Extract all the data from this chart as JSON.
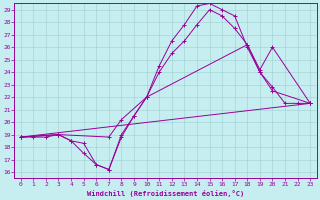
{
  "xlabel": "Windchill (Refroidissement éolien,°C)",
  "background_color": "#c6eef0",
  "line_color": "#990099",
  "grid_color": "#9dcfcf",
  "xlim": [
    -0.5,
    23.5
  ],
  "ylim": [
    15.5,
    29.5
  ],
  "xticks": [
    0,
    1,
    2,
    3,
    4,
    5,
    6,
    7,
    8,
    9,
    10,
    11,
    12,
    13,
    14,
    15,
    16,
    17,
    18,
    19,
    20,
    21,
    22,
    23
  ],
  "yticks": [
    16,
    17,
    18,
    19,
    20,
    21,
    22,
    23,
    24,
    25,
    26,
    27,
    28,
    29
  ],
  "line1_x": [
    0,
    1,
    2,
    3,
    4,
    5,
    6,
    7,
    8,
    9,
    10,
    11,
    12,
    13,
    14,
    15,
    16,
    17,
    18,
    19,
    20,
    21,
    22,
    23
  ],
  "line1_y": [
    18.8,
    18.8,
    18.8,
    19.0,
    18.5,
    18.3,
    16.6,
    16.2,
    18.8,
    20.5,
    22.0,
    24.5,
    26.5,
    27.8,
    29.3,
    29.5,
    29.0,
    28.5,
    26.0,
    24.0,
    22.8,
    21.5,
    21.5,
    21.5
  ],
  "line2_x": [
    0,
    3,
    7,
    8,
    10,
    11,
    12,
    13,
    14,
    15,
    16,
    17,
    18,
    19,
    20,
    23
  ],
  "line2_y": [
    18.8,
    19.0,
    18.8,
    20.2,
    22.0,
    24.0,
    25.5,
    26.5,
    27.8,
    29.0,
    28.5,
    27.5,
    26.2,
    24.0,
    22.5,
    21.5
  ],
  "line3_x": [
    0,
    3,
    4,
    5,
    6,
    7,
    8,
    9,
    10,
    18,
    19,
    20,
    23
  ],
  "line3_y": [
    18.8,
    19.0,
    18.5,
    17.5,
    16.6,
    16.2,
    19.0,
    20.5,
    22.0,
    26.2,
    24.2,
    26.0,
    21.5
  ],
  "line4_x": [
    0,
    23
  ],
  "line4_y": [
    18.8,
    21.5
  ]
}
